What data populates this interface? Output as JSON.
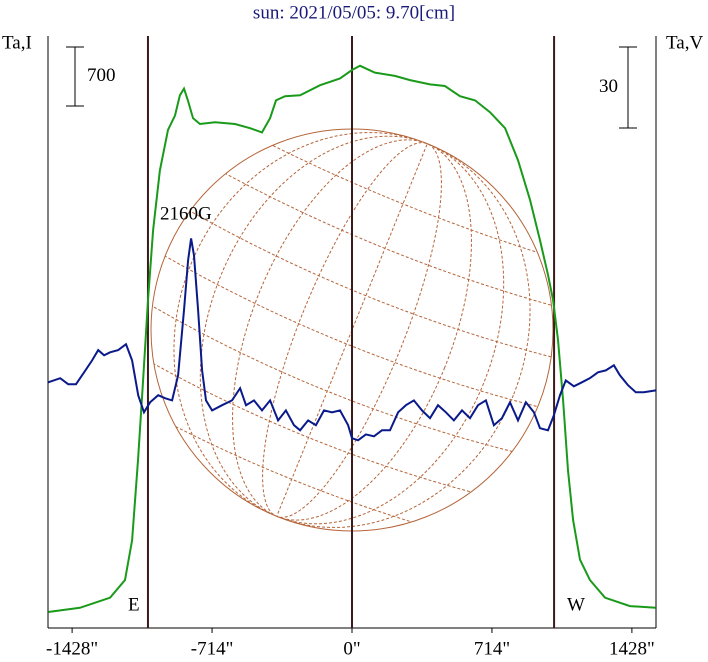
{
  "chart_data": {
    "type": "line",
    "title": "sun: 2021/05/05: 9.70[cm]",
    "y_label": "Ta,I",
    "y2_label": "Ta,V",
    "annotation": "2160G",
    "i_scale": 700,
    "v_scale": 30,
    "limb_lines": [
      -1041,
      0,
      1031
    ],
    "limb_labels": [
      "E",
      "W"
    ],
    "xlim": [
      -1551,
      1551
    ],
    "xticks": [
      {
        "value": -1428,
        "label": "-1428\""
      },
      {
        "value": -714,
        "label": "-714\""
      },
      {
        "value": 0,
        "label": "0\""
      },
      {
        "value": 714,
        "label": "714\""
      },
      {
        "value": 1428,
        "label": "1428\""
      }
    ],
    "ylim": [
      0,
      7000
    ],
    "y2lim": [
      -91,
      127.5
    ],
    "series": [
      {
        "name": "Ta,I",
        "color": "#1a9a1a",
        "x": [
          -1550,
          -1388,
          -1234,
          -1158,
          -1122,
          -1092,
          -1066,
          -1041,
          -1015,
          -980,
          -939,
          -903,
          -878,
          -857,
          -837,
          -811,
          -776,
          -699,
          -597,
          -520,
          -459,
          -418,
          -388,
          -342,
          -265,
          -163,
          -61,
          0,
          41,
          117,
          219,
          296,
          398,
          474,
          551,
          628,
          704,
          781,
          847,
          908,
          959,
          1000,
          1026,
          1051,
          1077,
          1102,
          1128,
          1163,
          1214,
          1291,
          1418,
          1550
        ],
        "values": [
          190,
          240,
          360,
          570,
          1040,
          1990,
          2940,
          3890,
          4720,
          5430,
          5910,
          6080,
          6320,
          6400,
          6260,
          6050,
          5980,
          6000,
          5980,
          5930,
          5880,
          6050,
          6260,
          6310,
          6320,
          6440,
          6520,
          6620,
          6670,
          6590,
          6550,
          6500,
          6450,
          6430,
          6310,
          6260,
          6120,
          5930,
          5550,
          5080,
          4600,
          4190,
          3890,
          3420,
          2700,
          1870,
          1280,
          810,
          570,
          360,
          260,
          240
        ]
      },
      {
        "name": "Ta,V",
        "color": "#0a1a8a",
        "axis": "y2",
        "x": [
          -1550,
          -1489,
          -1448,
          -1408,
          -1367,
          -1326,
          -1295,
          -1265,
          -1234,
          -1193,
          -1153,
          -1122,
          -1091,
          -1061,
          -1030,
          -989,
          -954,
          -918,
          -887,
          -857,
          -836,
          -821,
          -806,
          -785,
          -765,
          -745,
          -714,
          -663,
          -612,
          -571,
          -541,
          -500,
          -459,
          -418,
          -377,
          -337,
          -296,
          -265,
          -224,
          -184,
          -143,
          -102,
          -61,
          -20,
          0,
          31,
          71,
          112,
          153,
          194,
          235,
          275,
          316,
          357,
          398,
          439,
          479,
          520,
          561,
          602,
          643,
          683,
          724,
          765,
          806,
          847,
          887,
          928,
          959,
          1000,
          1030,
          1061,
          1091,
          1132,
          1173,
          1214,
          1255,
          1295,
          1336,
          1367,
          1408,
          1448,
          1489,
          1550
        ],
        "values": [
          0,
          1.5,
          -0.7,
          -0.7,
          3.7,
          8.1,
          11.9,
          10,
          11.1,
          11.9,
          14.1,
          8.1,
          -4.8,
          -11.1,
          -7.4,
          -4.8,
          -5.9,
          -6.7,
          2.6,
          26.7,
          45.2,
          53.3,
          47,
          26.7,
          4.4,
          -6.7,
          -10.4,
          -8.5,
          -6.7,
          -2.2,
          -8.5,
          -6.7,
          -10.4,
          -6.7,
          -14.1,
          -10.4,
          -15.9,
          -17.8,
          -14.1,
          -15.9,
          -10.4,
          -11.1,
          -10.4,
          -15.9,
          -20.7,
          -21.5,
          -19.3,
          -20,
          -17.8,
          -17.8,
          -11.1,
          -8.5,
          -6.7,
          -10.4,
          -13.3,
          -8.5,
          -11.1,
          -14.1,
          -10.4,
          -13.3,
          -8.5,
          -6.7,
          -15.9,
          -13.3,
          -7.4,
          -14.1,
          -7.4,
          -11.1,
          -17,
          -17.8,
          -12.2,
          -4.8,
          0.7,
          -1.5,
          0,
          1.5,
          3.7,
          4.4,
          6.3,
          2.6,
          -1.1,
          -3.7,
          -3.7,
          -3
        ]
      }
    ]
  }
}
